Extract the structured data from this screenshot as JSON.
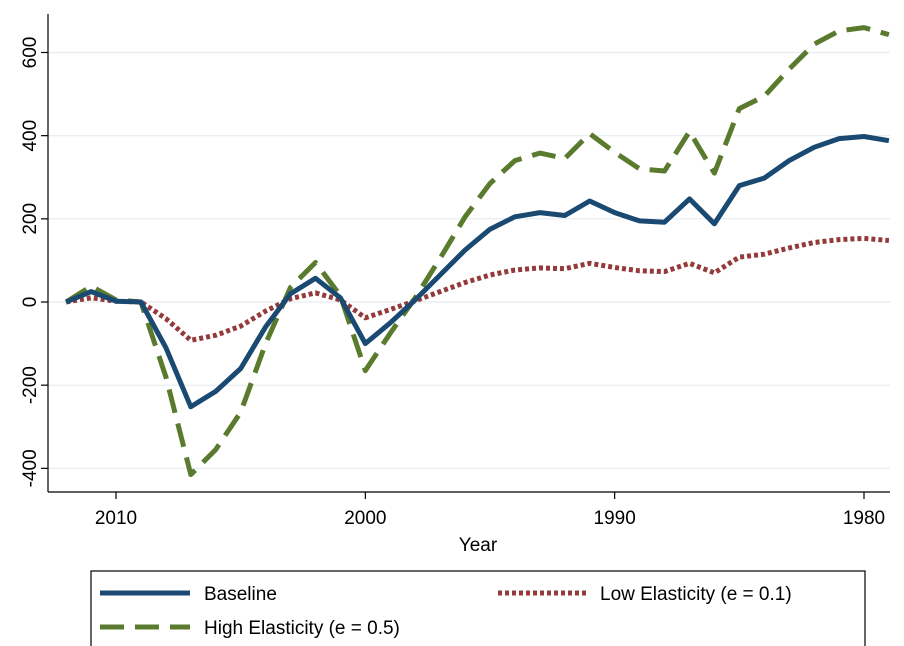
{
  "chart_data": {
    "type": "line",
    "title": "",
    "xlabel": "Year",
    "ylabel": "",
    "x_reversed": true,
    "xlim": [
      2012,
      1979
    ],
    "ylim": [
      -450,
      700
    ],
    "x_ticks": [
      2010,
      2000,
      1990,
      1980
    ],
    "y_ticks": [
      -400,
      -200,
      0,
      200,
      400,
      600
    ],
    "grid": "horizontal",
    "legend_position": "bottom",
    "x": [
      2012,
      2011,
      2010,
      2009,
      2008,
      2007,
      2006,
      2005,
      2004,
      2003,
      2002,
      2001,
      2000,
      1999,
      1998,
      1997,
      1996,
      1995,
      1994,
      1993,
      1992,
      1991,
      1990,
      1989,
      1988,
      1987,
      1986,
      1985,
      1984,
      1983,
      1982,
      1981,
      1980,
      1979
    ],
    "series": [
      {
        "name": "Baseline",
        "color": "#1a4a72",
        "dash": "solid",
        "values": [
          0,
          25,
          2,
          0,
          -110,
          -252,
          -215,
          -160,
          -60,
          20,
          57,
          10,
          -100,
          -50,
          5,
          65,
          125,
          175,
          205,
          215,
          208,
          243,
          215,
          195,
          192,
          248,
          188,
          280,
          298,
          340,
          372,
          393,
          398,
          388
        ]
      },
      {
        "name": "High Elasticity (e = 0.5)",
        "color": "#5a7a2e",
        "dash": "long-dash",
        "values": [
          0,
          38,
          5,
          0,
          -180,
          -415,
          -355,
          -265,
          -100,
          35,
          95,
          15,
          -165,
          -75,
          10,
          105,
          205,
          285,
          340,
          358,
          345,
          405,
          360,
          320,
          315,
          410,
          310,
          465,
          495,
          560,
          620,
          652,
          660,
          643
        ]
      },
      {
        "name": "Low Elasticity (e = 0.1)",
        "color": "#943a3a",
        "dash": "dotted",
        "values": [
          0,
          10,
          2,
          0,
          -40,
          -92,
          -80,
          -58,
          -22,
          8,
          22,
          5,
          -38,
          -18,
          3,
          25,
          47,
          65,
          77,
          82,
          80,
          93,
          83,
          75,
          73,
          93,
          70,
          108,
          115,
          130,
          143,
          150,
          153,
          148
        ]
      }
    ]
  }
}
